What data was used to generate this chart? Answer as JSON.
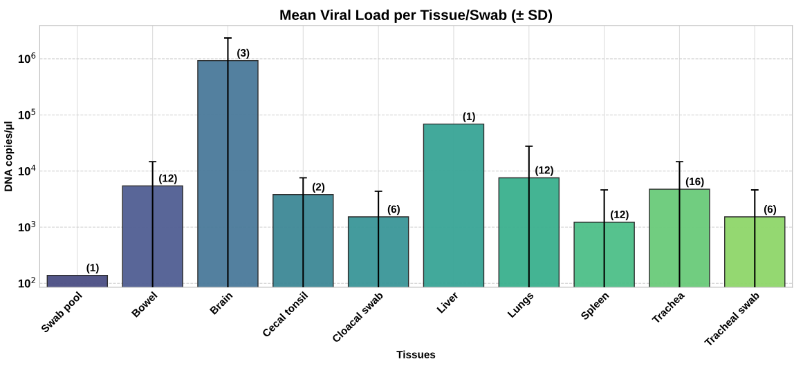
{
  "chart_data": {
    "type": "bar",
    "title": "Mean Viral Load per Tissue/Swab (± SD)",
    "xlabel": "Tissues",
    "ylabel": "DNA copies/µl",
    "categories": [
      "Swab pool",
      "Bowel",
      "Brain",
      "Cecal tonsil",
      "Cloacal swab",
      "Liver",
      "Lungs",
      "Spleen",
      "Trachea",
      "Tracheal swab"
    ],
    "values": [
      139,
      5450,
      930000,
      3810,
      1530,
      68900,
      7590,
      1230,
      4750,
      1530
    ],
    "errors": [
      null,
      [
        85,
        14700
      ],
      [
        85,
        2350000
      ],
      [
        85,
        7590
      ],
      [
        85,
        4370
      ],
      null,
      [
        85,
        27700
      ],
      [
        85,
        4620
      ],
      [
        85,
        14700
      ],
      [
        85,
        4620
      ]
    ],
    "colors": [
      "#4b4e84",
      "#515e93",
      "#4a7a9a",
      "#3e8896",
      "#3a9698",
      "#38a596",
      "#3bb08e",
      "#4dbf88",
      "#6acb7a",
      "#8fd66a"
    ],
    "annotations": [
      {
        "text": "(1)",
        "x": "Swab pool",
        "y": 139
      },
      {
        "text": "(12)",
        "x": "Bowel",
        "y": 5450
      },
      {
        "text": "(3)",
        "x": "Brain",
        "y": 930000
      },
      {
        "text": "(2)",
        "x": "Cecal tonsil",
        "y": 3810
      },
      {
        "text": "(6)",
        "x": "Cloacal swab",
        "y": 1530
      },
      {
        "text": "(1)",
        "x": "Liver",
        "y": 68900
      },
      {
        "text": "(12)",
        "x": "Lungs",
        "y": 7590
      },
      {
        "text": "(12)",
        "x": "Spleen",
        "y": 1230
      },
      {
        "text": "(16)",
        "x": "Trachea",
        "y": 4750
      },
      {
        "text": "(6)",
        "x": "Tracheal swab",
        "y": 1530
      }
    ],
    "log": true,
    "ylim": [
      85,
      3900000
    ],
    "yticks": [
      {
        "value": 100,
        "label": "10$^{2}$"
      },
      {
        "value": 1000,
        "label": "10$^{3}$"
      },
      {
        "value": 10000,
        "label": "10$^{4}$"
      },
      {
        "value": 100000,
        "label": "10$^{5}$"
      },
      {
        "value": 1000000,
        "label": "10$^{6}$"
      }
    ],
    "grid": true
  }
}
